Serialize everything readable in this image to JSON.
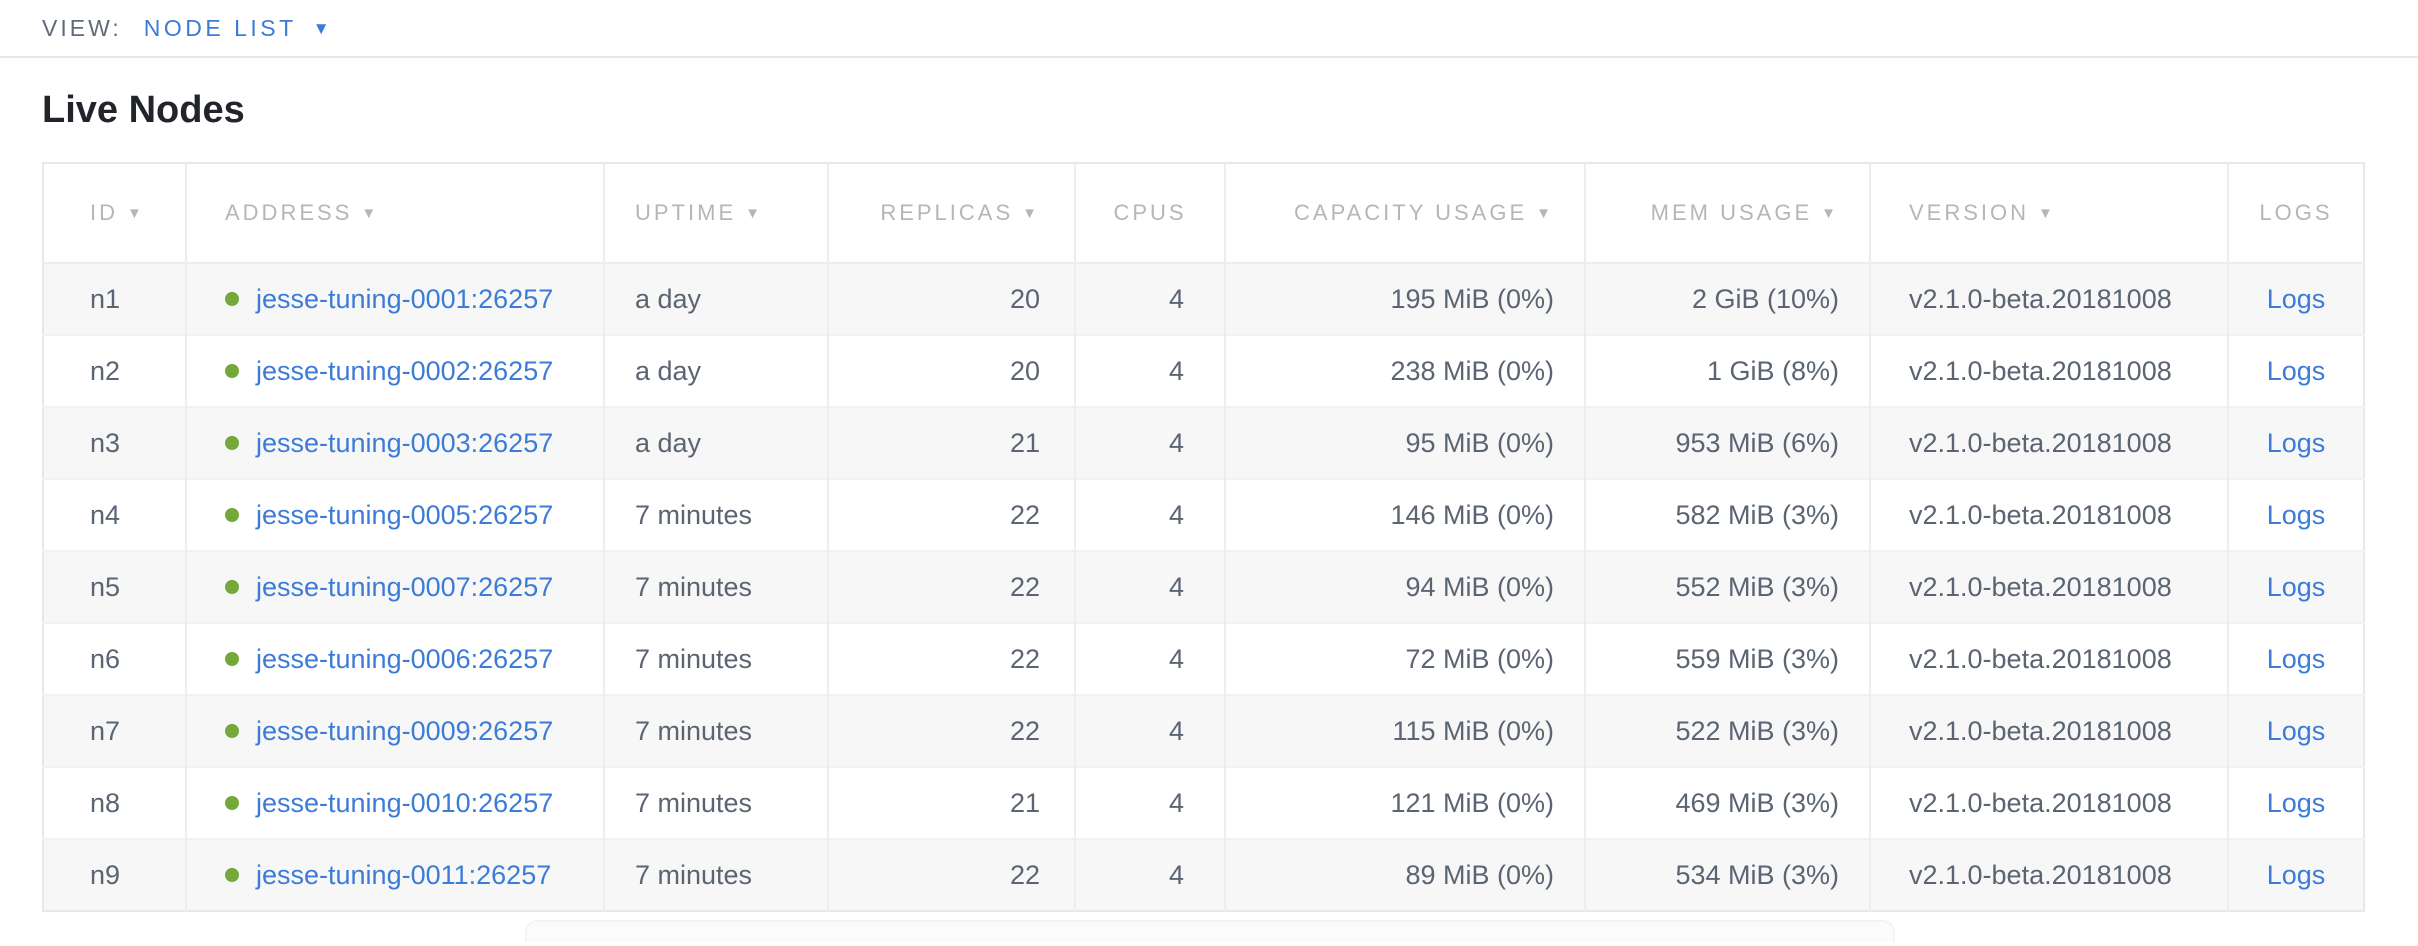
{
  "colors": {
    "accent_blue": "#3d7bd8",
    "status_green": "#74a838",
    "header_gray": "#b4b6b8",
    "cell_text": "#5a6472"
  },
  "view_bar": {
    "label": "VIEW:",
    "selected_view": "NODE LIST"
  },
  "page": {
    "title": "Live Nodes"
  },
  "nodes_table": {
    "columns": [
      {
        "label": "ID",
        "sort_arrow": true
      },
      {
        "label": "ADDRESS",
        "sort_arrow": true
      },
      {
        "label": "UPTIME",
        "sort_arrow": true
      },
      {
        "label": "REPLICAS",
        "sort_arrow": true
      },
      {
        "label": "CPUS",
        "sort_arrow": false
      },
      {
        "label": "CAPACITY USAGE",
        "sort_arrow": true
      },
      {
        "label": "MEM USAGE",
        "sort_arrow": true
      },
      {
        "label": "VERSION",
        "sort_arrow": true
      },
      {
        "label": "LOGS",
        "sort_arrow": false
      }
    ],
    "rows": [
      {
        "id": "n1",
        "status": "live",
        "address": "jesse-tuning-0001:26257",
        "uptime": "a day",
        "replicas": "20",
        "cpus": "4",
        "capacity_usage": "195 MiB (0%)",
        "mem_usage": "2 GiB (10%)",
        "version": "v2.1.0-beta.20181008",
        "logs_label": "Logs"
      },
      {
        "id": "n2",
        "status": "live",
        "address": "jesse-tuning-0002:26257",
        "uptime": "a day",
        "replicas": "20",
        "cpus": "4",
        "capacity_usage": "238 MiB (0%)",
        "mem_usage": "1 GiB (8%)",
        "version": "v2.1.0-beta.20181008",
        "logs_label": "Logs"
      },
      {
        "id": "n3",
        "status": "live",
        "address": "jesse-tuning-0003:26257",
        "uptime": "a day",
        "replicas": "21",
        "cpus": "4",
        "capacity_usage": "95 MiB (0%)",
        "mem_usage": "953 MiB (6%)",
        "version": "v2.1.0-beta.20181008",
        "logs_label": "Logs"
      },
      {
        "id": "n4",
        "status": "live",
        "address": "jesse-tuning-0005:26257",
        "uptime": "7 minutes",
        "replicas": "22",
        "cpus": "4",
        "capacity_usage": "146 MiB (0%)",
        "mem_usage": "582 MiB (3%)",
        "version": "v2.1.0-beta.20181008",
        "logs_label": "Logs"
      },
      {
        "id": "n5",
        "status": "live",
        "address": "jesse-tuning-0007:26257",
        "uptime": "7 minutes",
        "replicas": "22",
        "cpus": "4",
        "capacity_usage": "94 MiB (0%)",
        "mem_usage": "552 MiB (3%)",
        "version": "v2.1.0-beta.20181008",
        "logs_label": "Logs"
      },
      {
        "id": "n6",
        "status": "live",
        "address": "jesse-tuning-0006:26257",
        "uptime": "7 minutes",
        "replicas": "22",
        "cpus": "4",
        "capacity_usage": "72 MiB (0%)",
        "mem_usage": "559 MiB (3%)",
        "version": "v2.1.0-beta.20181008",
        "logs_label": "Logs"
      },
      {
        "id": "n7",
        "status": "live",
        "address": "jesse-tuning-0009:26257",
        "uptime": "7 minutes",
        "replicas": "22",
        "cpus": "4",
        "capacity_usage": "115 MiB (0%)",
        "mem_usage": "522 MiB (3%)",
        "version": "v2.1.0-beta.20181008",
        "logs_label": "Logs"
      },
      {
        "id": "n8",
        "status": "live",
        "address": "jesse-tuning-0010:26257",
        "uptime": "7 minutes",
        "replicas": "21",
        "cpus": "4",
        "capacity_usage": "121 MiB (0%)",
        "mem_usage": "469 MiB (3%)",
        "version": "v2.1.0-beta.20181008",
        "logs_label": "Logs"
      },
      {
        "id": "n9",
        "status": "live",
        "address": "jesse-tuning-0011:26257",
        "uptime": "7 minutes",
        "replicas": "22",
        "cpus": "4",
        "capacity_usage": "89 MiB (0%)",
        "mem_usage": "534 MiB (3%)",
        "version": "v2.1.0-beta.20181008",
        "logs_label": "Logs"
      }
    ]
  }
}
